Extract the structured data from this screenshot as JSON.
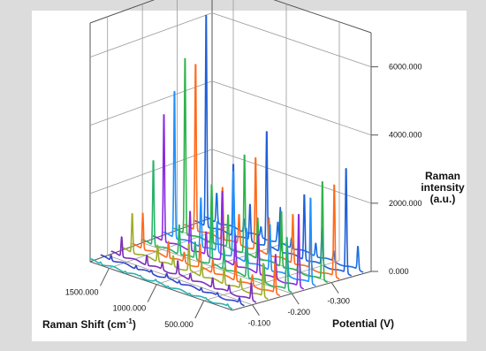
{
  "chart_data": {
    "type": "line",
    "subtype": "3d-waterfall",
    "title": "",
    "x_axis": {
      "label_main": "Raman Shift (cm",
      "label_sup": "-1",
      "label_close": ")",
      "ticks": [
        "1500.000",
        "1000.000",
        "500.000"
      ],
      "tick_values": [
        1500,
        1000,
        500
      ],
      "range": [
        200,
        1700
      ]
    },
    "z_axis": {
      "label": "Potential (V)",
      "ticks": [
        "-0.100",
        "-0.200",
        "-0.300"
      ],
      "tick_values": [
        -0.1,
        -0.2,
        -0.3
      ],
      "range": [
        -0.05,
        -0.4
      ]
    },
    "y_axis": {
      "label_lines": [
        "Raman",
        "intensity",
        "(a.u.)"
      ],
      "ticks": [
        "0.000",
        "2000.000",
        "4000.000",
        "6000.000"
      ],
      "tick_values": [
        0,
        2000,
        4000,
        6000
      ],
      "range": [
        0,
        7000
      ]
    },
    "grid": true,
    "legend": "none",
    "peak_positions": [
      1590,
      1330,
      1170,
      1010,
      880,
      650,
      480,
      250
    ],
    "series": [
      {
        "potential": -0.05,
        "color": "#2bb3b3",
        "peaks": [
          60,
          40,
          30,
          50,
          30,
          40,
          30,
          60
        ]
      },
      {
        "potential": -0.08,
        "color": "#3344cc",
        "peaks": [
          150,
          100,
          80,
          120,
          80,
          100,
          80,
          150
        ]
      },
      {
        "potential": -0.11,
        "color": "#7d2fb8",
        "peaks": [
          600,
          300,
          200,
          400,
          200,
          300,
          200,
          500
        ]
      },
      {
        "potential": -0.14,
        "color": "#9fad2a",
        "peaks": [
          1200,
          500,
          300,
          800,
          400,
          500,
          300,
          1000
        ]
      },
      {
        "potential": -0.17,
        "color": "#ff6a1a",
        "peaks": [
          1100,
          500,
          300,
          700,
          400,
          600,
          300,
          900
        ]
      },
      {
        "potential": -0.2,
        "color": "#27b36a",
        "peaks": [
          2600,
          900,
          500,
          1500,
          600,
          900,
          500,
          1600
        ]
      },
      {
        "potential": -0.23,
        "color": "#8a2be2",
        "peaks": [
          3900,
          1200,
          700,
          2100,
          900,
          1200,
          700,
          2200
        ]
      },
      {
        "potential": -0.26,
        "color": "#1e90ff",
        "peaks": [
          4500,
          1500,
          900,
          2600,
          1000,
          1400,
          900,
          2600
        ]
      },
      {
        "potential": -0.29,
        "color": "#2fb34b",
        "peaks": [
          5400,
          1800,
          1000,
          3000,
          1200,
          1700,
          1000,
          3000
        ]
      },
      {
        "potential": -0.32,
        "color": "#ff6a1a",
        "peaks": [
          5100,
          1600,
          900,
          2800,
          1100,
          1500,
          900,
          2800
        ]
      },
      {
        "potential": -0.35,
        "color": "#1f5fd6",
        "peaks": [
          6500,
          2200,
          1100,
          3500,
          1300,
          2000,
          1100,
          3200
        ]
      },
      {
        "potential": -0.38,
        "color": "#1a6fe0",
        "peaks": [
          900,
          400,
          300,
          600,
          300,
          400,
          300,
          700
        ]
      }
    ]
  }
}
